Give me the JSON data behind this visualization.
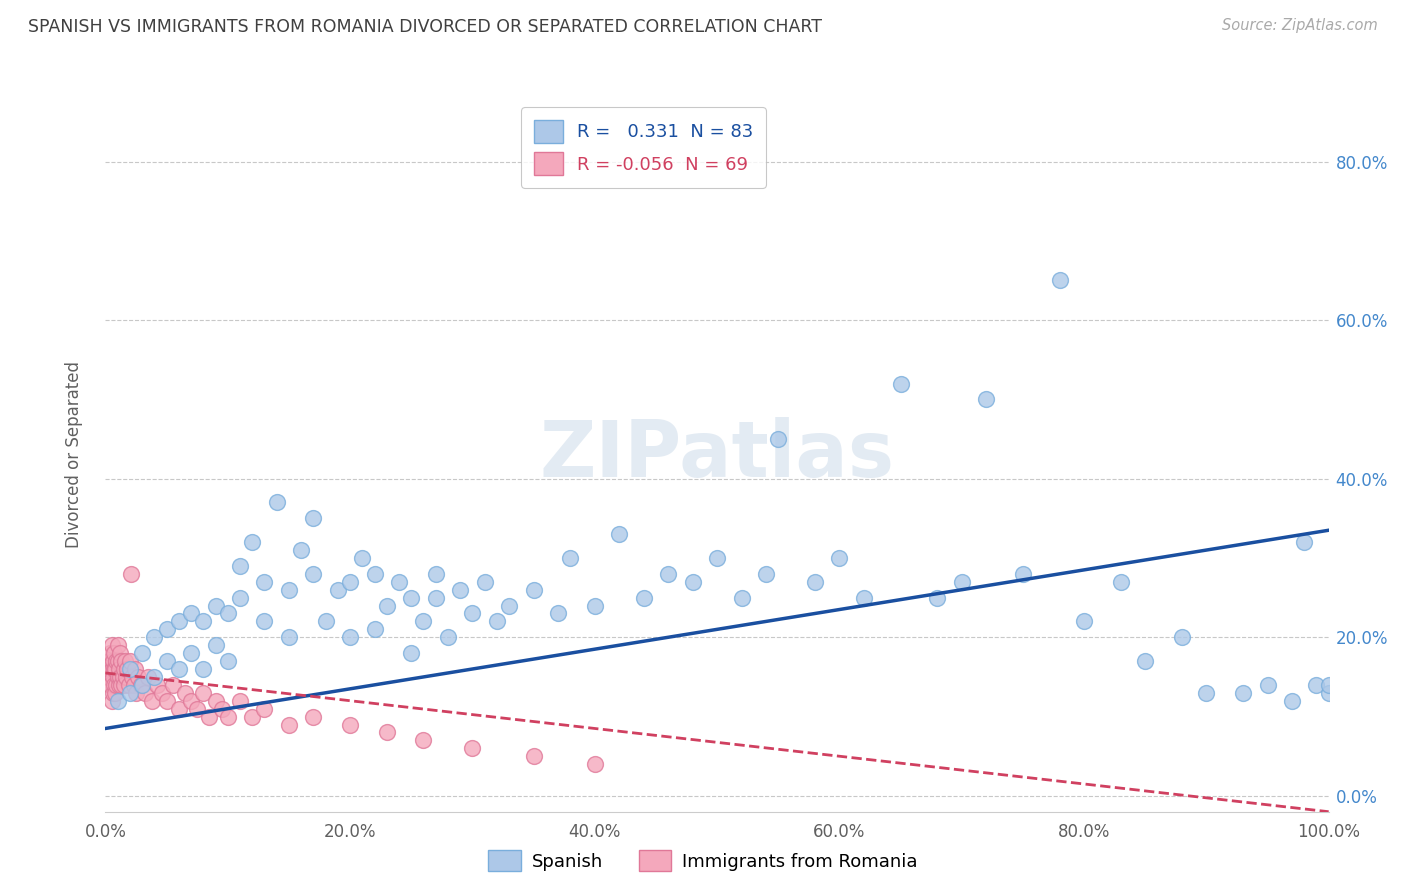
{
  "title": "SPANISH VS IMMIGRANTS FROM ROMANIA DIVORCED OR SEPARATED CORRELATION CHART",
  "source": "Source: ZipAtlas.com",
  "ylabel": "Divorced or Separated",
  "xlabel": "",
  "xlim": [
    0.0,
    1.0
  ],
  "ylim": [
    -0.02,
    0.88
  ],
  "yticks": [
    0.0,
    0.2,
    0.4,
    0.6,
    0.8
  ],
  "ytick_labels": [
    "0.0%",
    "20.0%",
    "40.0%",
    "60.0%",
    "80.0%"
  ],
  "xticks": [
    0.0,
    0.2,
    0.4,
    0.6,
    0.8,
    1.0
  ],
  "xtick_labels": [
    "0.0%",
    "20.0%",
    "40.0%",
    "60.0%",
    "80.0%",
    "100.0%"
  ],
  "series1_name": "Spanish",
  "series1_color": "#adc8e8",
  "series1_edge_color": "#7aaedc",
  "series1_R": "0.331",
  "series1_N": "83",
  "series2_name": "Immigrants from Romania",
  "series2_color": "#f4a8bc",
  "series2_edge_color": "#e07898",
  "series2_R": "-0.056",
  "series2_N": "69",
  "trend1_color": "#1a4fa0",
  "trend2_color": "#d04060",
  "background_color": "#ffffff",
  "grid_color": "#c8c8c8",
  "title_color": "#404040",
  "watermark": "ZIPatlas",
  "spanish_x": [
    0.01,
    0.02,
    0.02,
    0.03,
    0.03,
    0.04,
    0.04,
    0.05,
    0.05,
    0.06,
    0.06,
    0.07,
    0.07,
    0.08,
    0.08,
    0.09,
    0.09,
    0.1,
    0.1,
    0.11,
    0.11,
    0.12,
    0.13,
    0.13,
    0.14,
    0.15,
    0.15,
    0.16,
    0.17,
    0.17,
    0.18,
    0.19,
    0.2,
    0.2,
    0.21,
    0.22,
    0.22,
    0.23,
    0.24,
    0.25,
    0.25,
    0.26,
    0.27,
    0.27,
    0.28,
    0.29,
    0.3,
    0.31,
    0.32,
    0.33,
    0.35,
    0.37,
    0.38,
    0.4,
    0.42,
    0.44,
    0.46,
    0.48,
    0.5,
    0.52,
    0.54,
    0.55,
    0.58,
    0.6,
    0.62,
    0.65,
    0.68,
    0.7,
    0.72,
    0.75,
    0.78,
    0.8,
    0.83,
    0.85,
    0.88,
    0.9,
    0.93,
    0.95,
    0.97,
    0.98,
    0.99,
    1.0,
    1.0
  ],
  "spanish_y": [
    0.12,
    0.13,
    0.16,
    0.14,
    0.18,
    0.15,
    0.2,
    0.17,
    0.21,
    0.16,
    0.22,
    0.18,
    0.23,
    0.16,
    0.22,
    0.19,
    0.24,
    0.17,
    0.23,
    0.25,
    0.29,
    0.32,
    0.22,
    0.27,
    0.37,
    0.2,
    0.26,
    0.31,
    0.28,
    0.35,
    0.22,
    0.26,
    0.2,
    0.27,
    0.3,
    0.21,
    0.28,
    0.24,
    0.27,
    0.18,
    0.25,
    0.22,
    0.25,
    0.28,
    0.2,
    0.26,
    0.23,
    0.27,
    0.22,
    0.24,
    0.26,
    0.23,
    0.3,
    0.24,
    0.33,
    0.25,
    0.28,
    0.27,
    0.3,
    0.25,
    0.28,
    0.45,
    0.27,
    0.3,
    0.25,
    0.52,
    0.25,
    0.27,
    0.5,
    0.28,
    0.65,
    0.22,
    0.27,
    0.17,
    0.2,
    0.13,
    0.13,
    0.14,
    0.12,
    0.32,
    0.14,
    0.13,
    0.14
  ],
  "romania_x": [
    0.002,
    0.003,
    0.003,
    0.004,
    0.004,
    0.005,
    0.005,
    0.005,
    0.006,
    0.006,
    0.006,
    0.007,
    0.007,
    0.007,
    0.008,
    0.008,
    0.009,
    0.009,
    0.01,
    0.01,
    0.01,
    0.011,
    0.011,
    0.012,
    0.012,
    0.013,
    0.013,
    0.014,
    0.015,
    0.015,
    0.016,
    0.017,
    0.018,
    0.019,
    0.02,
    0.021,
    0.022,
    0.023,
    0.024,
    0.025,
    0.027,
    0.029,
    0.032,
    0.035,
    0.038,
    0.042,
    0.046,
    0.05,
    0.055,
    0.06,
    0.065,
    0.07,
    0.075,
    0.08,
    0.085,
    0.09,
    0.095,
    0.1,
    0.11,
    0.12,
    0.13,
    0.15,
    0.17,
    0.2,
    0.23,
    0.26,
    0.3,
    0.35,
    0.4
  ],
  "romania_y": [
    0.15,
    0.16,
    0.17,
    0.14,
    0.18,
    0.12,
    0.16,
    0.19,
    0.13,
    0.15,
    0.17,
    0.14,
    0.16,
    0.18,
    0.13,
    0.16,
    0.14,
    0.17,
    0.15,
    0.17,
    0.19,
    0.14,
    0.16,
    0.15,
    0.18,
    0.14,
    0.17,
    0.15,
    0.14,
    0.16,
    0.17,
    0.15,
    0.16,
    0.14,
    0.17,
    0.28,
    0.15,
    0.14,
    0.16,
    0.13,
    0.15,
    0.14,
    0.13,
    0.15,
    0.12,
    0.14,
    0.13,
    0.12,
    0.14,
    0.11,
    0.13,
    0.12,
    0.11,
    0.13,
    0.1,
    0.12,
    0.11,
    0.1,
    0.12,
    0.1,
    0.11,
    0.09,
    0.1,
    0.09,
    0.08,
    0.07,
    0.06,
    0.05,
    0.04
  ],
  "trend1_x_start": 0.0,
  "trend1_x_end": 1.0,
  "trend1_y_start": 0.085,
  "trend1_y_end": 0.335,
  "trend2_x_start": 0.0,
  "trend2_x_end": 1.0,
  "trend2_y_start": 0.155,
  "trend2_y_end": -0.02
}
